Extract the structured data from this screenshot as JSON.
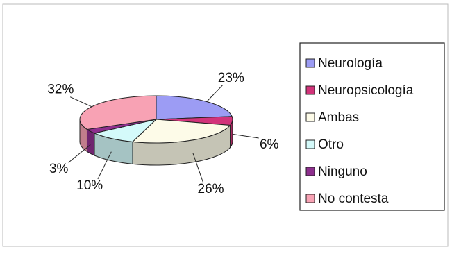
{
  "chart_data": {
    "type": "pie",
    "categories": [
      "Neurología",
      "Neuropsicología",
      "Ambas",
      "Otro",
      "Ninguno",
      "No contesta"
    ],
    "values": [
      23,
      6,
      26,
      10,
      3,
      32
    ],
    "value_labels": [
      "23%",
      "6%",
      "26%",
      "10%",
      "3%",
      "32%"
    ],
    "colors": [
      "#9c9cf4",
      "#d2337a",
      "#fdfbe8",
      "#d4fafa",
      "#8e2f8e",
      "#f8a2b4"
    ],
    "legend": "right"
  }
}
